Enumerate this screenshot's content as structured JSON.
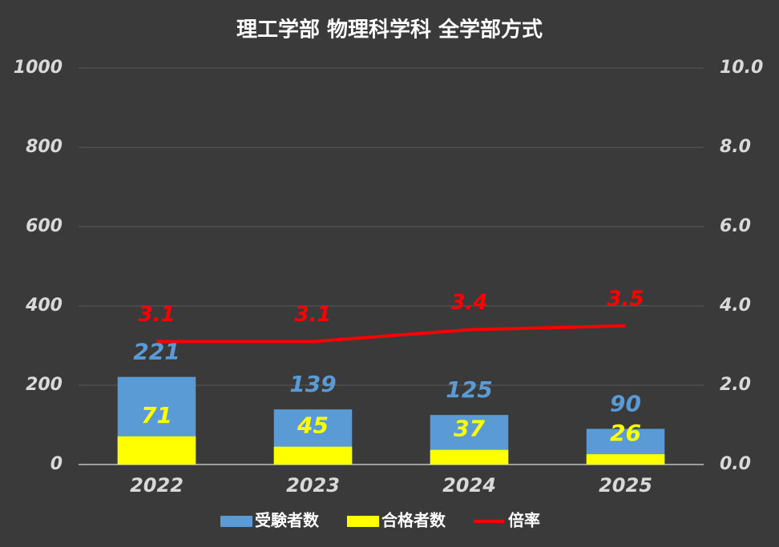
{
  "chart_data": {
    "type": "bar",
    "title": "理工学部 物理科学科 全学部方式",
    "categories": [
      "2022",
      "2023",
      "2024",
      "2025"
    ],
    "series": [
      {
        "name": "受験者数",
        "color": "#5b9bd5",
        "values": [
          221,
          139,
          125,
          90
        ]
      },
      {
        "name": "合格者数",
        "color": "#ffff00",
        "values": [
          71,
          45,
          37,
          26
        ]
      },
      {
        "name": "倍率",
        "color": "#ff0000",
        "type": "line",
        "axis": "y2",
        "values": [
          3.1,
          3.1,
          3.4,
          3.5
        ]
      }
    ],
    "ylim": [
      0,
      1000
    ],
    "yticks": [
      0,
      200,
      400,
      600,
      800,
      1000
    ],
    "y2lim": [
      0,
      10
    ],
    "y2ticks": [
      {
        "value": 0,
        "label": "0.0"
      },
      {
        "value": 2,
        "label": "2.0"
      },
      {
        "value": 4,
        "label": "4.0"
      },
      {
        "value": 6,
        "label": "6.0"
      },
      {
        "value": 8,
        "label": "8.0"
      },
      {
        "value": 10,
        "label": "10.0"
      }
    ],
    "grid": true,
    "legend": "bottom"
  }
}
